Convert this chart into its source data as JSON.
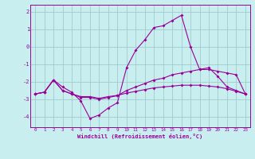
{
  "xlabel": "Windchill (Refroidissement éolien,°C)",
  "bg_color": "#c8eef0",
  "grid_color": "#a0cccc",
  "line_color": "#990099",
  "x_ticks": [
    0,
    1,
    2,
    3,
    4,
    5,
    6,
    7,
    8,
    9,
    10,
    11,
    12,
    13,
    14,
    15,
    16,
    17,
    18,
    19,
    20,
    21,
    22,
    23
  ],
  "ylim": [
    -4.6,
    2.4
  ],
  "xlim": [
    -0.5,
    23.5
  ],
  "yticks": [
    -4,
    -3,
    -2,
    -1,
    0,
    1,
    2
  ],
  "series1_x": [
    0,
    1,
    2,
    3,
    4,
    5,
    6,
    7,
    8,
    9,
    10,
    11,
    12,
    13,
    14,
    15,
    16,
    17,
    18,
    19,
    20,
    21,
    22,
    23
  ],
  "series1_y": [
    -2.7,
    -2.6,
    -1.9,
    -2.3,
    -2.6,
    -3.1,
    -4.1,
    -3.9,
    -3.5,
    -3.2,
    -1.2,
    -0.2,
    0.4,
    1.1,
    1.2,
    1.5,
    1.8,
    -0.0,
    -1.3,
    -1.2,
    -1.7,
    -2.3,
    -2.5,
    -2.7
  ],
  "series2_x": [
    0,
    1,
    2,
    3,
    4,
    5,
    6,
    7,
    8,
    9,
    10,
    11,
    12,
    13,
    14,
    15,
    16,
    17,
    18,
    19,
    20,
    21,
    22,
    23
  ],
  "series2_y": [
    -2.7,
    -2.6,
    -1.9,
    -2.5,
    -2.7,
    -2.9,
    -2.9,
    -3.0,
    -2.9,
    -2.8,
    -2.5,
    -2.3,
    -2.1,
    -1.9,
    -1.8,
    -1.6,
    -1.5,
    -1.4,
    -1.3,
    -1.3,
    -1.4,
    -1.5,
    -1.6,
    -2.7
  ],
  "series3_x": [
    0,
    1,
    2,
    3,
    4,
    5,
    6,
    7,
    8,
    9,
    10,
    11,
    12,
    13,
    14,
    15,
    16,
    17,
    18,
    19,
    20,
    21,
    22,
    23
  ],
  "series3_y": [
    -2.7,
    -2.6,
    -1.9,
    -2.5,
    -2.7,
    -2.85,
    -2.85,
    -2.95,
    -2.85,
    -2.78,
    -2.65,
    -2.55,
    -2.45,
    -2.35,
    -2.3,
    -2.25,
    -2.2,
    -2.2,
    -2.2,
    -2.25,
    -2.3,
    -2.4,
    -2.55,
    -2.7
  ]
}
